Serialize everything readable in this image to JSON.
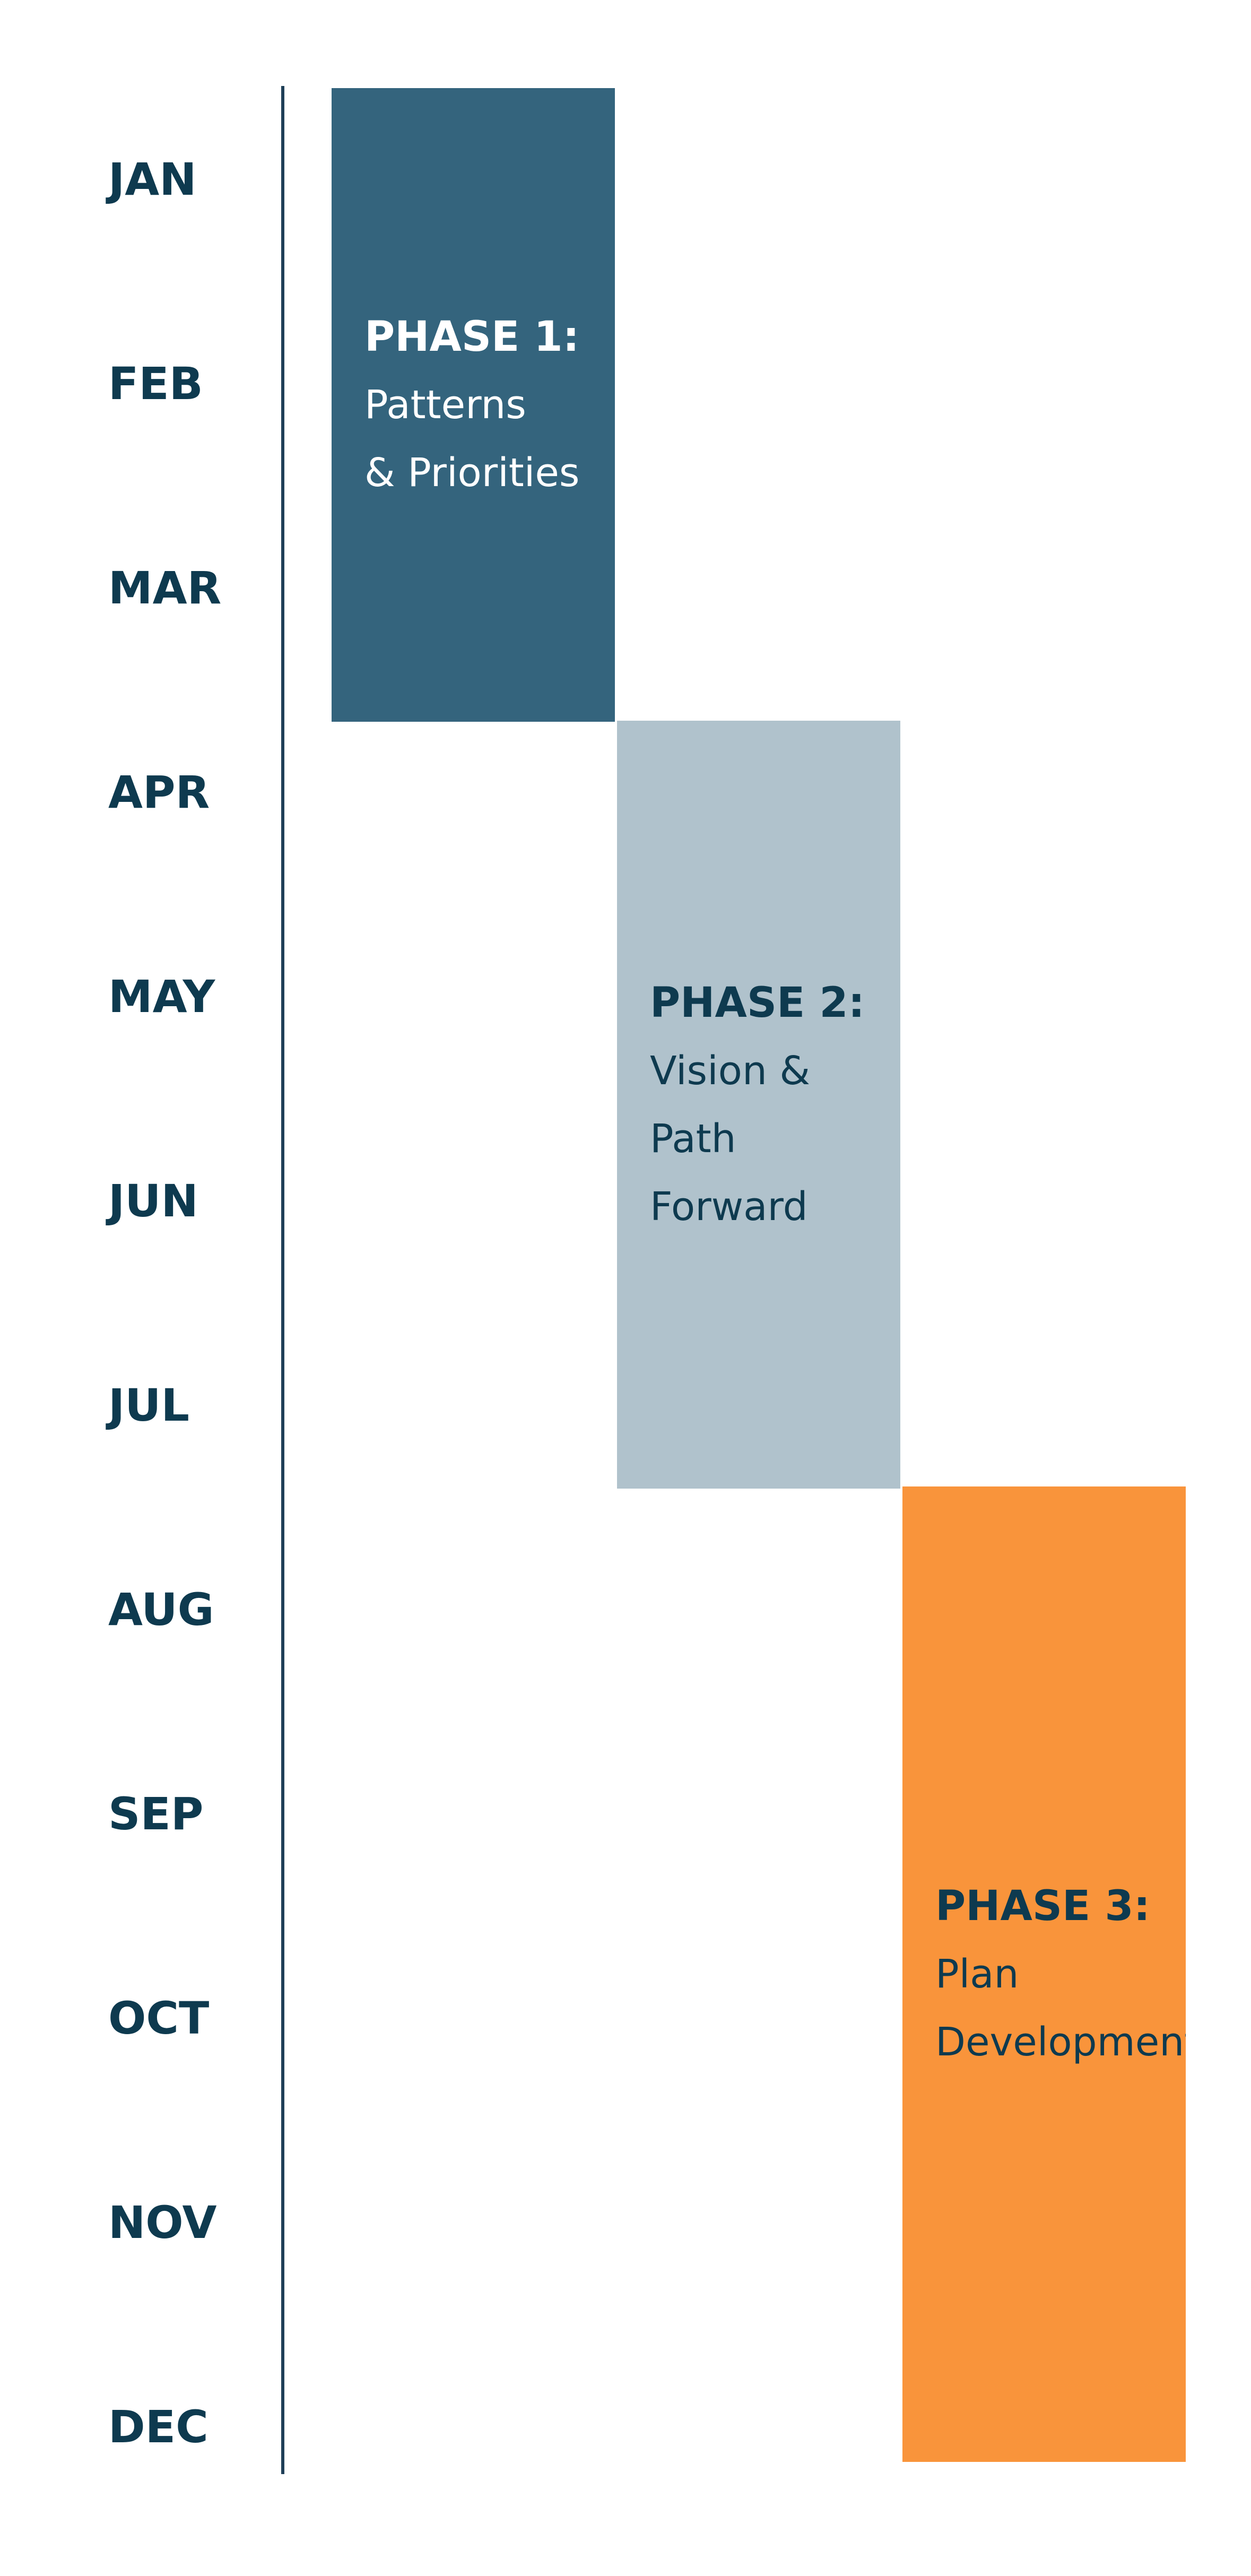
{
  "months": [
    "JAN",
    "FEB",
    "MAR",
    "APR",
    "MAY",
    "JUN",
    "JUL",
    "AUG",
    "SEP",
    "OCT",
    "NOV",
    "DEC"
  ],
  "phases": [
    {
      "title": "PHASE 1:",
      "lines": [
        "Patterns",
        "& Priorities"
      ],
      "start_month": "JAN",
      "end_month": "MAR",
      "fill_color": "#34647d",
      "text_color": "#ffffff"
    },
    {
      "title": "PHASE 2:",
      "lines": [
        "Vision &",
        "Path",
        "Forward"
      ],
      "start_month": "APR",
      "end_month": "JUL",
      "fill_color": "#b0c2cc",
      "text_color": "#0e3a4f"
    },
    {
      "title": "PHASE 3:",
      "lines": [
        "Plan",
        "Development"
      ],
      "start_month": "AUG",
      "end_month": "DEC",
      "fill_color": "#f9943b",
      "text_color": "#0e3a4f"
    }
  ],
  "colors": {
    "month_label": "#0e3a4f",
    "axis_line": "#1f3f57",
    "background": "#ffffff"
  }
}
